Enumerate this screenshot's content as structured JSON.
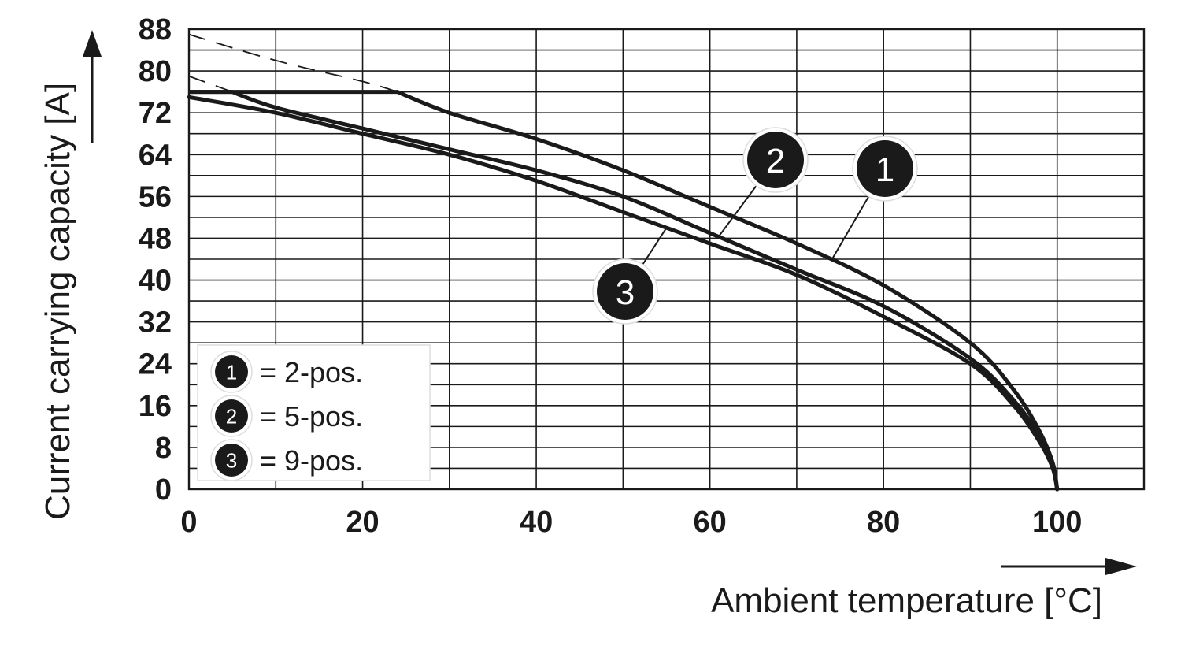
{
  "chart_data": {
    "type": "line",
    "xlabel": "Ambient temperature [°C]",
    "ylabel": "Current carrying capacity [A]",
    "xlim": [
      0,
      110
    ],
    "ylim": [
      0,
      88
    ],
    "x_ticks": [
      "0",
      "20",
      "40",
      "60",
      "80",
      "100"
    ],
    "y_ticks": [
      "0",
      "8",
      "16",
      "24",
      "32",
      "40",
      "48",
      "56",
      "64",
      "72",
      "80",
      "88"
    ],
    "grid": true,
    "legend_position": "bottom-left",
    "legend": [
      {
        "marker": "1",
        "text": "= 2-pos."
      },
      {
        "marker": "2",
        "text": "= 5-pos."
      },
      {
        "marker": "3",
        "text": "= 9-pos."
      }
    ],
    "series": [
      {
        "marker": "1",
        "cap": 76,
        "x": [
          0,
          10,
          20,
          24,
          30,
          40,
          50,
          60,
          70,
          80,
          90,
          95,
          98,
          99.5,
          100
        ],
        "y": [
          87,
          82,
          78,
          76,
          72,
          67,
          61,
          54,
          47,
          39,
          28,
          19,
          11,
          5,
          0
        ],
        "extrapolated_dashed_until_x": 24
      },
      {
        "marker": "2",
        "cap": 76,
        "x": [
          0,
          5,
          10,
          20,
          30,
          40,
          50,
          60,
          70,
          80,
          90,
          95,
          98,
          99.5,
          100
        ],
        "y": [
          79,
          76,
          73,
          69,
          65,
          61,
          56,
          49,
          42,
          35,
          25,
          17,
          10,
          4,
          0
        ],
        "extrapolated_dashed_until_x": 5
      },
      {
        "marker": "3",
        "cap": 76,
        "x": [
          0,
          10,
          20,
          30,
          40,
          50,
          60,
          70,
          80,
          90,
          95,
          98,
          99.5,
          100
        ],
        "y": [
          75,
          72,
          68,
          64,
          59,
          53,
          47,
          41,
          33,
          24,
          16,
          9,
          4,
          0
        ]
      }
    ]
  }
}
